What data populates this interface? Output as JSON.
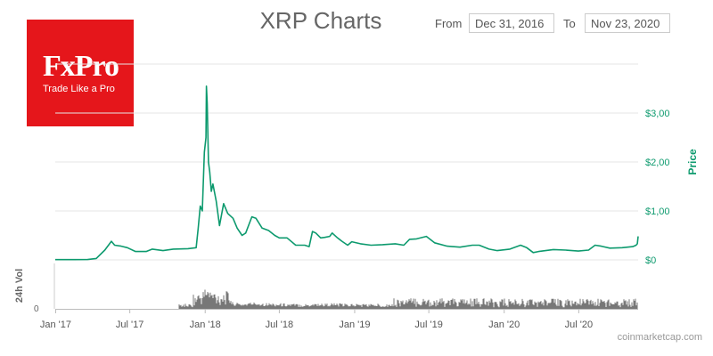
{
  "logo": {
    "brand": "FxPro",
    "tagline": "Trade Like a Pro",
    "bg_color": "#e5161b"
  },
  "range": {
    "from_label": "From",
    "from_value": "Dec 31, 2016",
    "to_label": "To",
    "to_value": "Nov 23, 2020"
  },
  "credit": "coinmarketcap.com",
  "chart_data": {
    "type": "line",
    "title": "XRP Charts",
    "ylabel": "Price",
    "volume_label": "24h Vol",
    "x_ticks": [
      "Jan '17",
      "Jul '17",
      "Jan '18",
      "Jul '18",
      "Jan '19",
      "Jul '19",
      "Jan '20",
      "Jul '20"
    ],
    "x_tick_dates": [
      "2017-01-01",
      "2017-07-01",
      "2018-01-01",
      "2018-07-01",
      "2019-01-01",
      "2019-07-01",
      "2020-01-01",
      "2020-07-01"
    ],
    "y_ticks": [
      {
        "value": 0,
        "label": "$0"
      },
      {
        "value": 1,
        "label": "$1,00"
      },
      {
        "value": 2,
        "label": "$2,00"
      },
      {
        "value": 3,
        "label": "$3,00"
      }
    ],
    "volume_ticks": [
      {
        "value": 0,
        "label": "0"
      }
    ],
    "ylim": [
      0,
      4
    ],
    "xlim": [
      "2016-12-31",
      "2020-11-23"
    ],
    "line_color": "#0d9a6e",
    "volume_color": "#555555",
    "grid": true,
    "series": [
      {
        "values": [
          [
            "2016-12-31",
            0.006
          ],
          [
            "2017-02-15",
            0.006
          ],
          [
            "2017-03-20",
            0.008
          ],
          [
            "2017-04-10",
            0.03
          ],
          [
            "2017-05-01",
            0.2
          ],
          [
            "2017-05-17",
            0.38
          ],
          [
            "2017-05-25",
            0.3
          ],
          [
            "2017-06-10",
            0.28
          ],
          [
            "2017-06-25",
            0.25
          ],
          [
            "2017-07-15",
            0.17
          ],
          [
            "2017-08-10",
            0.17
          ],
          [
            "2017-08-25",
            0.22
          ],
          [
            "2017-09-20",
            0.19
          ],
          [
            "2017-10-15",
            0.22
          ],
          [
            "2017-11-20",
            0.23
          ],
          [
            "2017-12-10",
            0.25
          ],
          [
            "2017-12-15",
            0.65
          ],
          [
            "2017-12-20",
            1.1
          ],
          [
            "2017-12-25",
            1.0
          ],
          [
            "2017-12-30",
            2.2
          ],
          [
            "2018-01-03",
            2.5
          ],
          [
            "2018-01-04",
            3.55
          ],
          [
            "2018-01-06",
            3.2
          ],
          [
            "2018-01-09",
            2.0
          ],
          [
            "2018-01-12",
            1.8
          ],
          [
            "2018-01-16",
            1.4
          ],
          [
            "2018-01-20",
            1.55
          ],
          [
            "2018-01-28",
            1.2
          ],
          [
            "2018-02-05",
            0.7
          ],
          [
            "2018-02-15",
            1.15
          ],
          [
            "2018-02-25",
            0.95
          ],
          [
            "2018-03-10",
            0.85
          ],
          [
            "2018-03-20",
            0.65
          ],
          [
            "2018-04-01",
            0.5
          ],
          [
            "2018-04-10",
            0.55
          ],
          [
            "2018-04-25",
            0.88
          ],
          [
            "2018-05-05",
            0.85
          ],
          [
            "2018-05-20",
            0.65
          ],
          [
            "2018-06-05",
            0.6
          ],
          [
            "2018-06-20",
            0.5
          ],
          [
            "2018-07-01",
            0.45
          ],
          [
            "2018-07-20",
            0.45
          ],
          [
            "2018-08-10",
            0.3
          ],
          [
            "2018-09-01",
            0.3
          ],
          [
            "2018-09-12",
            0.27
          ],
          [
            "2018-09-20",
            0.58
          ],
          [
            "2018-09-28",
            0.55
          ],
          [
            "2018-10-10",
            0.45
          ],
          [
            "2018-10-20",
            0.46
          ],
          [
            "2018-11-01",
            0.48
          ],
          [
            "2018-11-07",
            0.55
          ],
          [
            "2018-11-20",
            0.45
          ],
          [
            "2018-12-01",
            0.38
          ],
          [
            "2018-12-15",
            0.3
          ],
          [
            "2018-12-25",
            0.37
          ],
          [
            "2019-01-15",
            0.33
          ],
          [
            "2019-02-10",
            0.3
          ],
          [
            "2019-03-10",
            0.31
          ],
          [
            "2019-04-10",
            0.33
          ],
          [
            "2019-05-01",
            0.3
          ],
          [
            "2019-05-15",
            0.42
          ],
          [
            "2019-06-01",
            0.43
          ],
          [
            "2019-06-25",
            0.48
          ],
          [
            "2019-07-15",
            0.35
          ],
          [
            "2019-08-15",
            0.28
          ],
          [
            "2019-09-15",
            0.26
          ],
          [
            "2019-10-15",
            0.3
          ],
          [
            "2019-11-01",
            0.3
          ],
          [
            "2019-11-25",
            0.22
          ],
          [
            "2019-12-15",
            0.19
          ],
          [
            "2020-01-15",
            0.22
          ],
          [
            "2020-02-10",
            0.3
          ],
          [
            "2020-02-25",
            0.25
          ],
          [
            "2020-03-12",
            0.15
          ],
          [
            "2020-03-25",
            0.17
          ],
          [
            "2020-04-30",
            0.21
          ],
          [
            "2020-05-30",
            0.2
          ],
          [
            "2020-06-30",
            0.18
          ],
          [
            "2020-07-25",
            0.2
          ],
          [
            "2020-08-10",
            0.3
          ],
          [
            "2020-08-25",
            0.28
          ],
          [
            "2020-09-15",
            0.24
          ],
          [
            "2020-10-15",
            0.25
          ],
          [
            "2020-11-10",
            0.27
          ],
          [
            "2020-11-18",
            0.3
          ],
          [
            "2020-11-21",
            0.33
          ],
          [
            "2020-11-23",
            0.48
          ]
        ]
      }
    ]
  }
}
